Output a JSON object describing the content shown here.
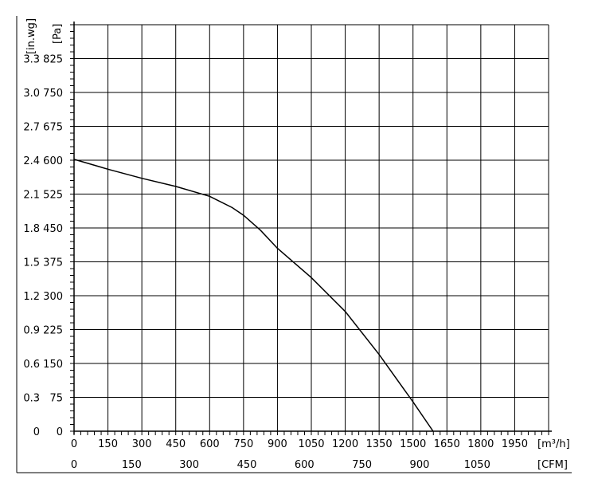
{
  "chart_data": {
    "type": "line",
    "title": "",
    "x_primary": {
      "unit": "[m³/h]",
      "ticks": [
        "0",
        "150",
        "300",
        "450",
        "600",
        "750",
        "900",
        "1050",
        "1200",
        "1350",
        "1500",
        "1650",
        "1800",
        "1950"
      ],
      "range": [
        0,
        2100
      ]
    },
    "x_secondary": {
      "unit": "[CFM]",
      "ticks": [
        "0",
        "150",
        "300",
        "450",
        "600",
        "750",
        "900",
        "1050"
      ],
      "tick_values_m3h": [
        0,
        254.85,
        509.7,
        764.55,
        1019.4,
        1274.25,
        1529.1,
        1783.95
      ]
    },
    "y_primary": {
      "unit": "[Pa]",
      "ticks": [
        "0",
        "75",
        "150",
        "225",
        "300",
        "375",
        "450",
        "525",
        "600",
        "675",
        "750",
        "825"
      ],
      "range": [
        0,
        900
      ]
    },
    "y_secondary": {
      "unit": "[in.wg]",
      "ticks": [
        "0",
        "0.3",
        "0.6",
        "0.9",
        "1.2",
        "1.5",
        "1.8",
        "2.1",
        "2.4",
        "2.7",
        "3.0",
        "3.3"
      ]
    },
    "grid": true,
    "series": [
      {
        "color": "#000000",
        "x": [
          0,
          150,
          300,
          450,
          600,
          700,
          750,
          825,
          900,
          1050,
          1200,
          1350,
          1500,
          1650,
          1710
        ],
        "y": [
          602,
          580,
          560,
          542,
          520,
          495,
          478,
          445,
          405,
          340,
          265,
          170,
          65,
          -45,
          -105
        ]
      }
    ]
  }
}
